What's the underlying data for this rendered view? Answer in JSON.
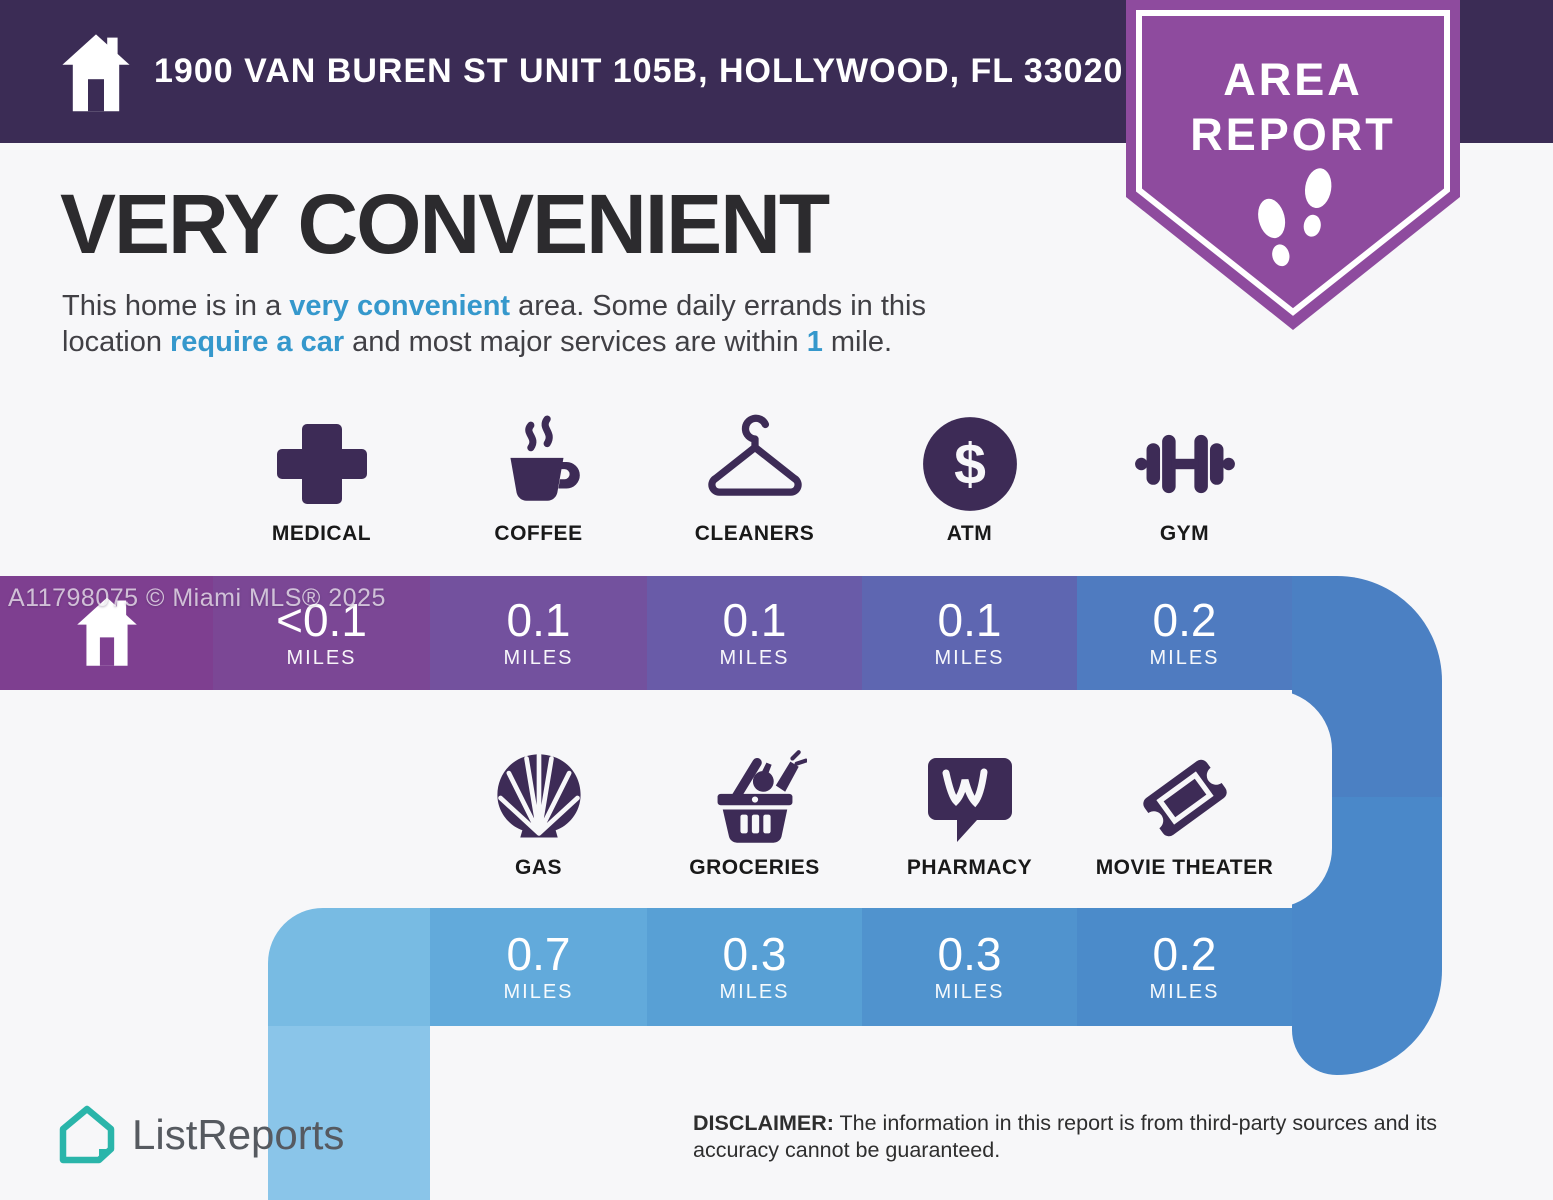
{
  "page": {
    "bg": "#f7f7f9"
  },
  "header": {
    "address": "1900 VAN BUREN ST UNIT 105B, HOLLYWOOD, FL 33020",
    "bg": "#3b2c55"
  },
  "badge": {
    "line1": "AREA",
    "line2": "REPORT",
    "color": "#8e4b9e",
    "icon": "footprints-icon"
  },
  "intro": {
    "title": "VERY CONVENIENT",
    "highlight_color": "#3598cc",
    "lines": [
      [
        {
          "text": "This home is in a "
        },
        {
          "text": "very convenient",
          "highlight": true
        },
        {
          "text": " area. Some daily errands in this"
        }
      ],
      [
        {
          "text": "location "
        },
        {
          "text": "require a car",
          "highlight": true
        },
        {
          "text": " and most major services are within "
        },
        {
          "text": "1",
          "highlight": true
        },
        {
          "text": " mile."
        }
      ]
    ]
  },
  "icon_color": "#3d2b56",
  "row1": {
    "home": {
      "icon": "home-icon",
      "color": "#7e3f90"
    },
    "turn_color": "#4b80c3",
    "items": [
      {
        "icon": "medical-cross-icon",
        "label": "MEDICAL",
        "value": "<0.1",
        "unit": "MILES",
        "color": "#7b4795"
      },
      {
        "icon": "coffee-cup-icon",
        "label": "COFFEE",
        "value": "0.1",
        "unit": "MILES",
        "color": "#73519e"
      },
      {
        "icon": "hanger-icon",
        "label": "CLEANERS",
        "value": "0.1",
        "unit": "MILES",
        "color": "#695ba8"
      },
      {
        "icon": "dollar-circle-icon",
        "label": "ATM",
        "value": "0.1",
        "unit": "MILES",
        "color": "#5e66b1"
      },
      {
        "icon": "dumbbell-icon",
        "label": "GYM",
        "value": "0.2",
        "unit": "MILES",
        "color": "#4f7bc0"
      }
    ]
  },
  "row2": {
    "turn_color": "#4a88c9",
    "left_turn_color": "#78bbe3",
    "band_color": "#8ac5e9",
    "items": [
      {
        "icon": "shell-gas-icon",
        "label": "GAS",
        "value": "0.7",
        "unit": "MILES",
        "color": "#62aadb"
      },
      {
        "icon": "grocery-basket-icon",
        "label": "GROCERIES",
        "value": "0.3",
        "unit": "MILES",
        "color": "#58a0d5"
      },
      {
        "icon": "pharmacy-w-icon",
        "label": "PHARMACY",
        "value": "0.3",
        "unit": "MILES",
        "color": "#5093ce"
      },
      {
        "icon": "movie-ticket-icon",
        "label": "MOVIE THEATER",
        "value": "0.2",
        "unit": "MILES",
        "color": "#4b8bca"
      }
    ]
  },
  "watermark": "A11798075 © Miami MLS® 2025",
  "footer": {
    "brand": "ListReports",
    "brand_color": "#2ab5aa",
    "disclaimer_label": "DISCLAIMER:",
    "disclaimer_text": " The information in this report is from third-party sources and its accuracy cannot be guaranteed."
  }
}
